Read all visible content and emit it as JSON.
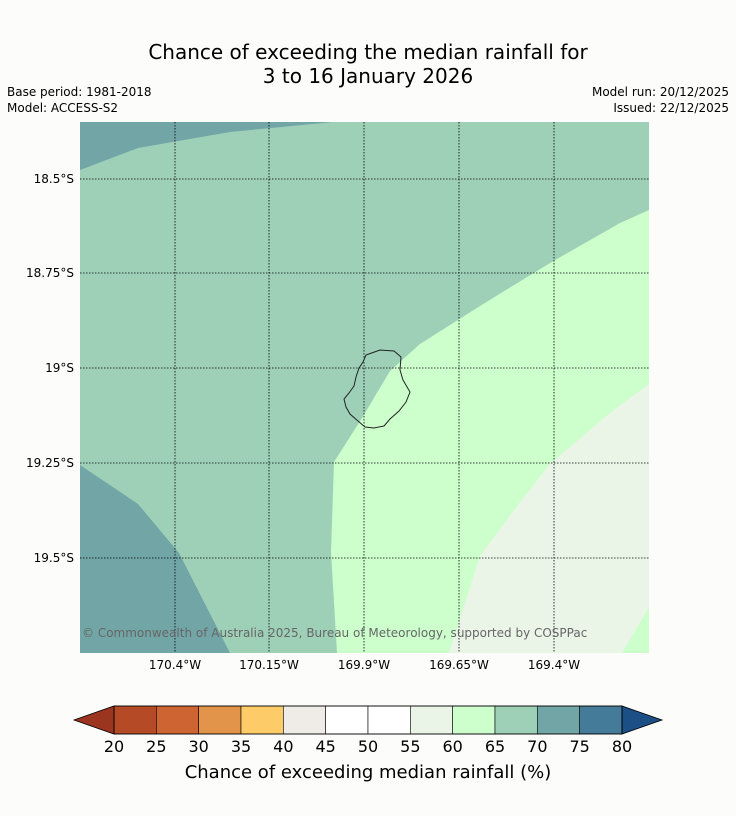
{
  "title_line1": "Chance of exceeding the median rainfall for",
  "title_line2": "3 to 16 January 2026",
  "base_period": "Base period: 1981-2018",
  "model": "Model: ACCESS-S2",
  "model_run": "Model run: 20/12/2025",
  "issued": "Issued: 22/12/2025",
  "copyright": "© Commonwealth of Australia 2025, Bureau of Meteorology, supported by COSPPac",
  "lat_labels": [
    "18.5°S",
    "18.75°S",
    "19°S",
    "19.25°S",
    "19.5°S"
  ],
  "lon_labels": [
    "170.4°W",
    "170.15°W",
    "169.9°W",
    "169.65°W",
    "169.4°W"
  ],
  "colorbar": {
    "title": "Chance of exceeding median rainfall (%)",
    "ticks": [
      "20",
      "25",
      "30",
      "35",
      "40",
      "45",
      "50",
      "55",
      "60",
      "65",
      "70",
      "75",
      "80"
    ],
    "colors": [
      "#b44a26",
      "#cd6431",
      "#e2954a",
      "#fdcc68",
      "#efebe7",
      "#ffffff",
      "#ffffff",
      "#eaf5e8",
      "#ccffcc",
      "#9ed0b8",
      "#71a5a6",
      "#437b99"
    ],
    "under_color": "#9c3520",
    "over_color": "#1b4f86"
  },
  "map_colors": {
    "band_70_75": "#71a5a6",
    "band_65_70": "#9ed0b8",
    "band_60_65": "#ccffcc",
    "band_55_60": "#eaf5e8"
  }
}
